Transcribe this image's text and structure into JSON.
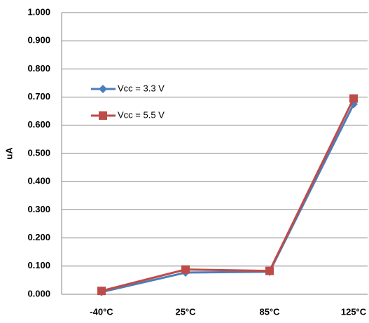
{
  "chart_data": {
    "type": "line",
    "y_label": "uA",
    "categories": [
      "-40°C",
      "25°C",
      "85°C",
      "125°C"
    ],
    "series": [
      {
        "name": "Vcc = 3.3 V",
        "color": "#4a7ebb",
        "marker": "diamond",
        "values": [
          0.008,
          0.077,
          0.08,
          0.675
        ]
      },
      {
        "name": "Vcc = 5.5 V",
        "color": "#be4b48",
        "marker": "square",
        "values": [
          0.012,
          0.088,
          0.083,
          0.695
        ]
      }
    ],
    "ylim": [
      0,
      1
    ],
    "yticks": [
      {
        "value": 0,
        "label": "0.000"
      },
      {
        "value": 0.1,
        "label": "0.100"
      },
      {
        "value": 0.2,
        "label": "0.200"
      },
      {
        "value": 0.3,
        "label": "0.300"
      },
      {
        "value": 0.4,
        "label": "0.400"
      },
      {
        "value": 0.5,
        "label": "0.500"
      },
      {
        "value": 0.6,
        "label": "0.600"
      },
      {
        "value": 0.7,
        "label": "0.700"
      },
      {
        "value": 0.8,
        "label": "0.800"
      },
      {
        "value": 0.9,
        "label": "0.900"
      },
      {
        "value": 1,
        "label": "1.000"
      }
    ],
    "grid": true
  }
}
